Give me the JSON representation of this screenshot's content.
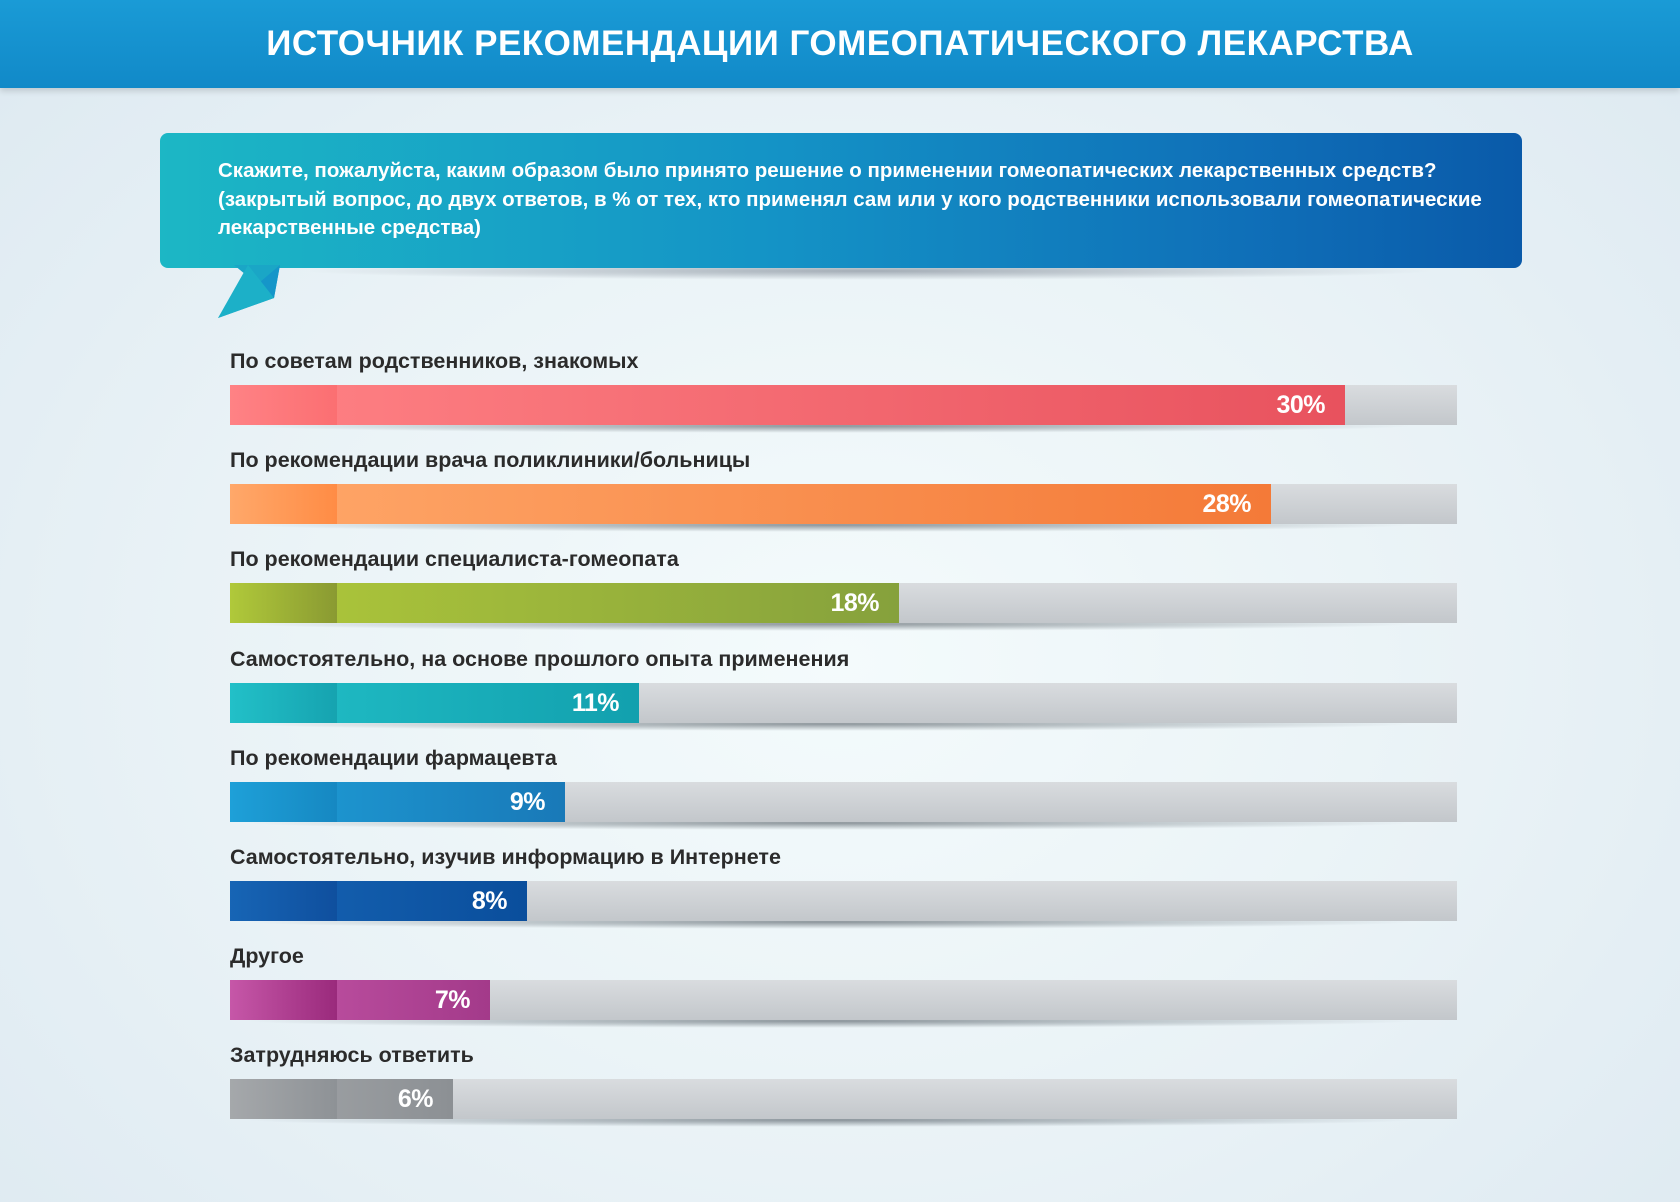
{
  "header": {
    "title": "ИСТОЧНИК РЕКОМЕНДАЦИИ ГОМЕОПАТИЧЕСКОГО ЛЕКАРСТВА"
  },
  "question": {
    "line1": "Скажите, пожалуйста, каким образом было принято решение о применении гомеопатических лекарственных средств?",
    "line2": "(закрытый вопрос, до двух ответов, в % от тех, кто применял сам или у кого родственники использовали гомеопатические",
    "line3": "лекарственные средства)"
  },
  "chart_data": {
    "type": "bar",
    "orientation": "horizontal",
    "title": "ИСТОЧНИК РЕКОМЕНДАЦИИ ГОМЕОПАТИЧЕСКОГО ЛЕКАРСТВА",
    "unit": "%",
    "xlim": [
      0,
      33
    ],
    "categories": [
      "По советам родственников, знакомых",
      "По рекомендации врача поликлиники/больницы",
      "По рекомендации специалиста-гомеопата",
      "Самостоятельно, на основе прошлого опыта применения",
      "По рекомендации фармацевта",
      "Самостоятельно, изучив информацию в Интернете",
      "Другое",
      "Затрудняюсь ответить"
    ],
    "values": [
      30,
      28,
      18,
      11,
      9,
      8,
      7,
      6
    ],
    "value_labels": [
      "30%",
      "28%",
      "18%",
      "11%",
      "9%",
      "8%",
      "7%",
      "6%"
    ],
    "colors": [
      [
        "#fb6f72",
        "#ff8285",
        "#e8525e"
      ],
      [
        "#ff8c45",
        "#ffa86a",
        "#f47a38"
      ],
      [
        "#8a9a32",
        "#b0c93a",
        "#86a13c"
      ],
      [
        "#16a3b0",
        "#22c0c8",
        "#12a0ae"
      ],
      [
        "#1688c2",
        "#1ea0d8",
        "#1979b8"
      ],
      [
        "#0f4f9e",
        "#1765b5",
        "#0a4e9c"
      ],
      [
        "#9a2a7c",
        "#c657a8",
        "#a33a8a"
      ],
      [
        "#8e9296",
        "#a5a8ab",
        "#8c9094"
      ]
    ]
  }
}
